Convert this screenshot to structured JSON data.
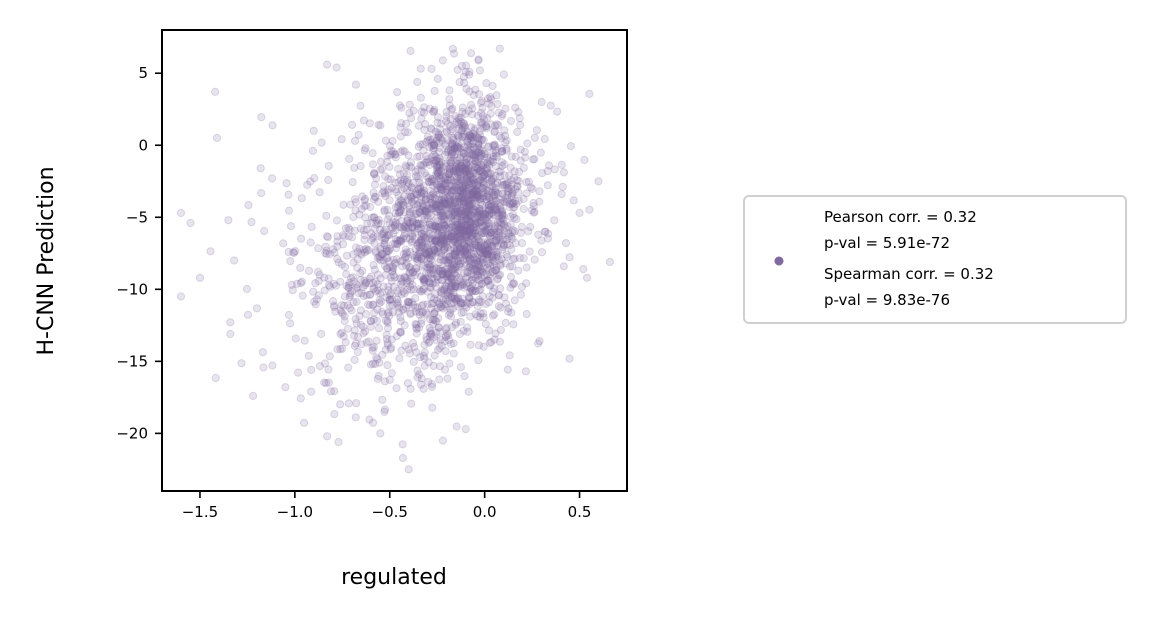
{
  "chart_data": {
    "type": "scatter",
    "title": "",
    "xlabel": "regulated",
    "ylabel": "H-CNN Prediction",
    "xlim": [
      -1.7,
      0.75
    ],
    "ylim": [
      -24,
      8
    ],
    "xticks": [
      -1.5,
      -1.0,
      -0.5,
      0.0,
      0.5
    ],
    "xtick_labels": [
      "−1.5",
      "−1.0",
      "−0.5",
      "0.0",
      "0.5"
    ],
    "yticks": [
      5,
      0,
      -5,
      -10,
      -15,
      -20
    ],
    "ytick_labels": [
      "5",
      "0",
      "−5",
      "−10",
      "−15",
      "−20"
    ],
    "grid": false,
    "legend_position": "right, outside plot",
    "point_color": "#8068a0",
    "point_alpha": 0.18,
    "legend": {
      "line1": "Pearson corr. = 0.32",
      "line2": "p-val = 5.91e-72",
      "line3": "Spearman corr. = 0.32",
      "line4": "p-val = 9.83e-76"
    },
    "series": [
      {
        "outliers": [
          [
            -1.6,
            -10.5
          ],
          [
            -1.6,
            -4.7
          ],
          [
            -1.55,
            -5.4
          ],
          [
            -1.5,
            -9.2
          ],
          [
            -1.42,
            3.7
          ],
          [
            -1.41,
            0.5
          ],
          [
            -1.35,
            -5.2
          ],
          [
            -1.34,
            -12.3
          ],
          [
            -1.32,
            -8.0
          ],
          [
            -1.22,
            -17.4
          ],
          [
            -1.18,
            -1.6
          ],
          [
            -1.12,
            -2.3
          ],
          [
            -0.9,
            1.0
          ],
          [
            -0.83,
            5.6
          ],
          [
            -0.78,
            5.4
          ],
          [
            -0.83,
            -20.2
          ],
          [
            -0.77,
            -20.6
          ],
          [
            -0.55,
            -20.0
          ],
          [
            -0.4,
            -22.5
          ],
          [
            -0.28,
            5.3
          ],
          [
            -0.12,
            5.5
          ],
          [
            0.08,
            6.7
          ],
          [
            0.3,
            3.0
          ],
          [
            0.32,
            -6.0
          ],
          [
            0.5,
            -4.7
          ],
          [
            0.52,
            -8.6
          ],
          [
            0.6,
            -2.5
          ],
          [
            0.66,
            -8.1
          ],
          [
            -0.22,
            -20.5
          ],
          [
            -0.1,
            -19.7
          ]
        ]
      }
    ]
  }
}
